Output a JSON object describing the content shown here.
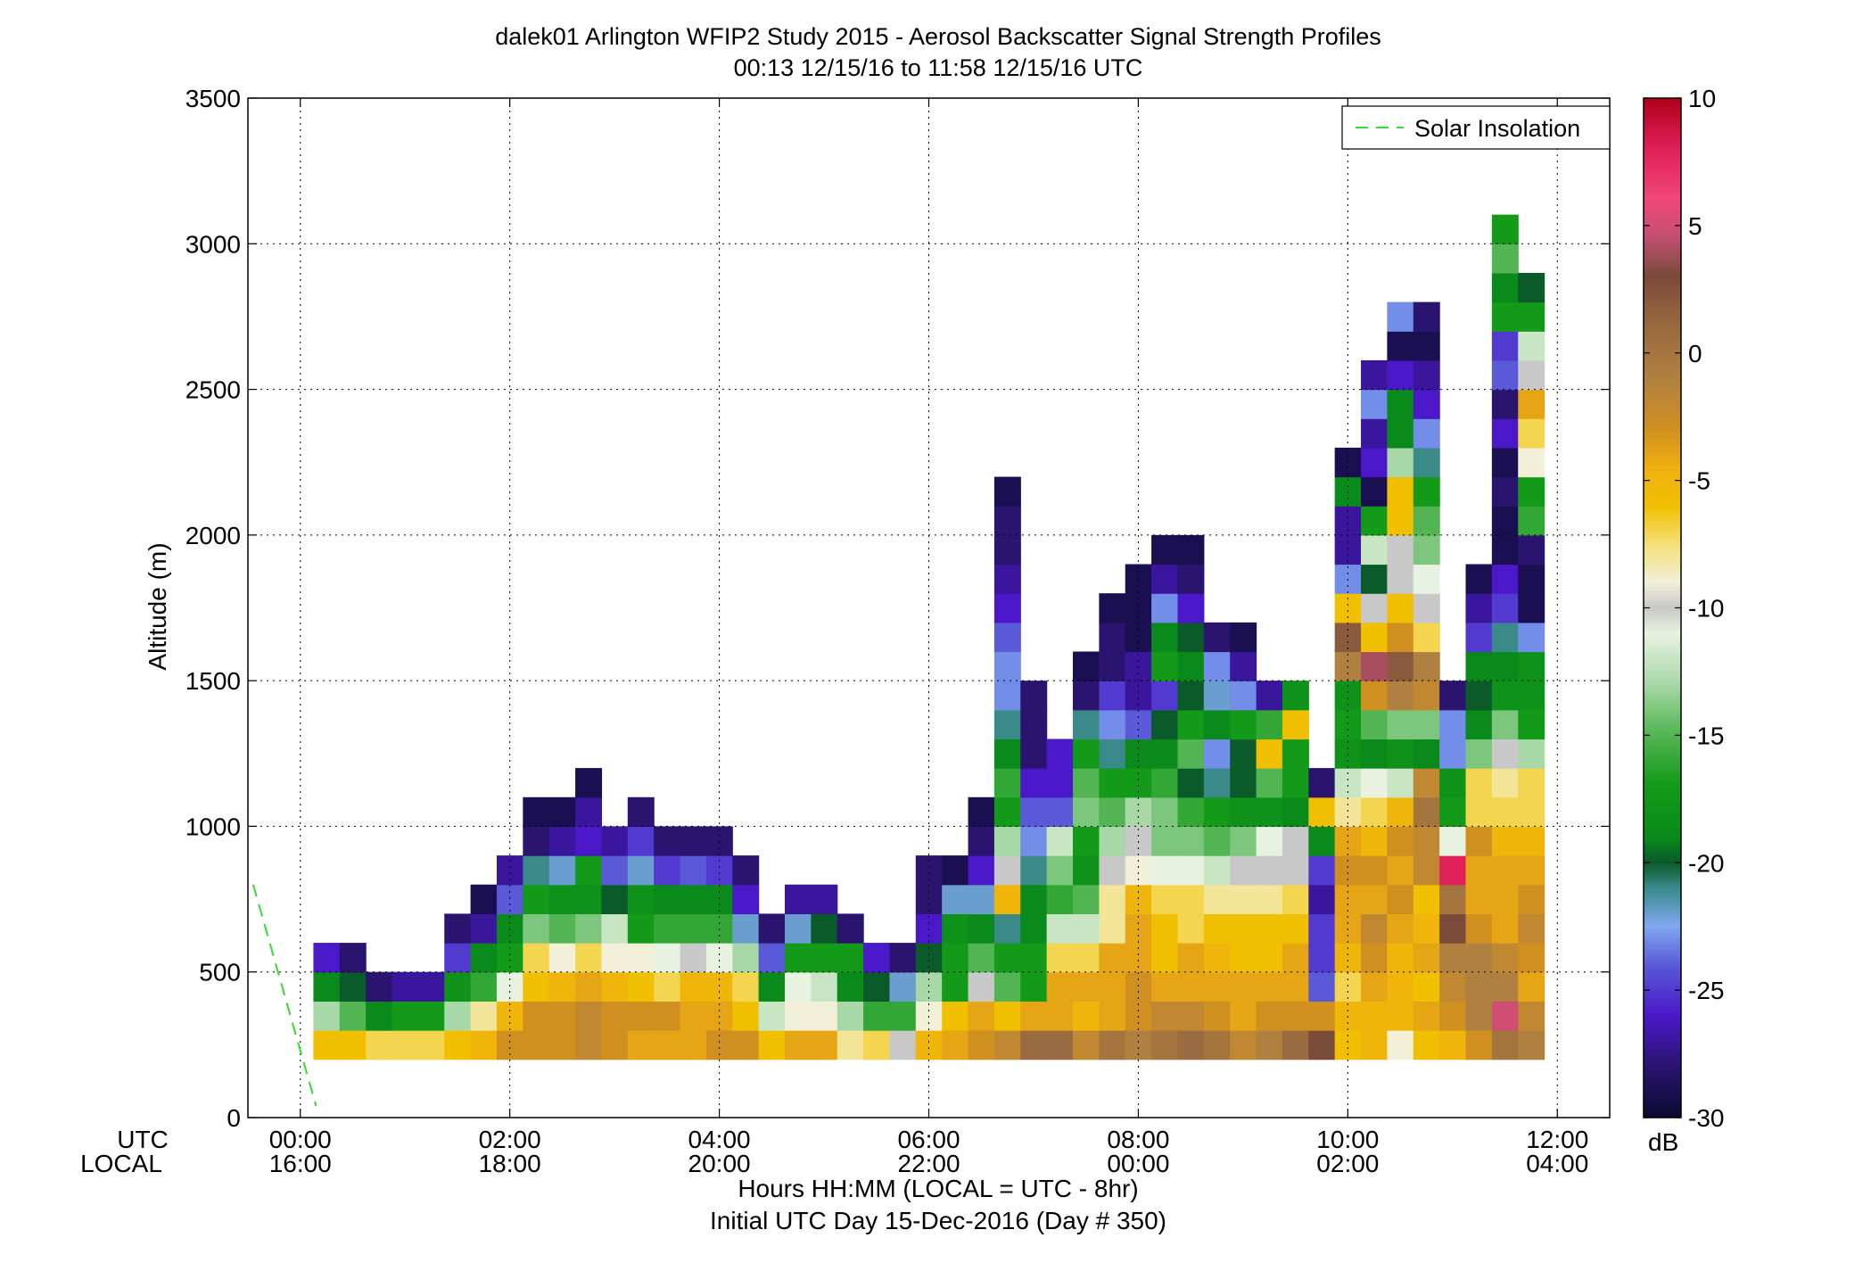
{
  "chart_data": {
    "type": "heatmap",
    "title": "dalek01 Arlington WFIP2 Study 2015 - Aerosol Backscatter Signal Strength Profiles",
    "subtitle": "00:13 12/15/16 to 11:58 12/15/16  UTC",
    "ylabel": "Altitude (m)",
    "xlabel": "Hours HH:MM  (LOCAL = UTC - 8hr)",
    "xlabel2": "Initial UTC Day 15-Dec-2016 (Day # 350)",
    "axis_row_labels": [
      "UTC",
      "LOCAL"
    ],
    "x_ticks_utc": [
      "00:00",
      "02:00",
      "04:00",
      "06:00",
      "08:00",
      "10:00",
      "12:00"
    ],
    "x_ticks_local": [
      "16:00",
      "18:00",
      "20:00",
      "22:00",
      "00:00",
      "02:00",
      "04:00"
    ],
    "x_tick_hours": [
      0,
      2,
      4,
      6,
      8,
      10,
      12
    ],
    "xlim_hours": [
      -0.5,
      12.5
    ],
    "y_ticks": [
      0,
      500,
      1000,
      1500,
      2000,
      2500,
      3000,
      3500
    ],
    "ylim": [
      0,
      3500
    ],
    "grid": true,
    "legend": {
      "entries": [
        "Solar Insolation"
      ],
      "position": "top-right"
    },
    "colorbar": {
      "label": "dB",
      "ticks": [
        10,
        5,
        0,
        -5,
        -10,
        -15,
        -20,
        -25,
        -30
      ],
      "range": [
        -30,
        10
      ]
    },
    "solar_insolation_line": {
      "x_hours": [
        -0.45,
        0.15
      ],
      "y": [
        800,
        40
      ],
      "color": "#33dd33"
    },
    "cell_altitude_bottom_m": 200,
    "cell_altitude_step_m": 100,
    "cell_time_step_hours": 0.25,
    "profiles": [
      {
        "t": 0.25,
        "db": [
          -6,
          -13,
          -19,
          -26
        ]
      },
      {
        "t": 0.5,
        "db": [
          -6,
          -15,
          -20,
          -28
        ]
      },
      {
        "t": 0.75,
        "db": [
          -7,
          -19,
          -28
        ]
      },
      {
        "t": 1.0,
        "db": [
          -7,
          -17,
          -27
        ]
      },
      {
        "t": 1.25,
        "db": [
          -7,
          -17,
          -27
        ]
      },
      {
        "t": 1.5,
        "db": [
          -6,
          -13,
          -18,
          -25,
          -28
        ]
      },
      {
        "t": 1.75,
        "db": [
          -5,
          -8,
          -16,
          -19,
          -27,
          -29
        ]
      },
      {
        "t": 2.0,
        "db": [
          -3,
          -5,
          -11,
          -17,
          -19,
          -24,
          -27
        ]
      },
      {
        "t": 2.25,
        "db": [
          -3,
          -3,
          -6,
          -7,
          -14,
          -17,
          -21,
          -28,
          -29
        ]
      },
      {
        "t": 2.5,
        "db": [
          -3,
          -3,
          -5,
          -9,
          -15,
          -18,
          -22,
          -27,
          -29
        ]
      },
      {
        "t": 2.75,
        "db": [
          -2,
          -2,
          -4,
          -7,
          -14,
          -18,
          -17,
          -26,
          -27,
          -29
        ]
      },
      {
        "t": 3.0,
        "db": [
          -3,
          -3,
          -5,
          -9,
          -12,
          -20,
          -24,
          -27
        ]
      },
      {
        "t": 3.25,
        "db": [
          -4,
          -3,
          -6,
          -9,
          -17,
          -18,
          -22,
          -25,
          -28
        ]
      },
      {
        "t": 3.5,
        "db": [
          -4,
          -3,
          -7,
          -11,
          -16,
          -19,
          -25,
          -28
        ]
      },
      {
        "t": 3.75,
        "db": [
          -4,
          -4,
          -5,
          -10,
          -16,
          -19,
          -24,
          -28
        ]
      },
      {
        "t": 4.0,
        "db": [
          -3,
          -4,
          -5,
          -11,
          -16,
          -19,
          -25,
          -28
        ]
      },
      {
        "t": 4.25,
        "db": [
          -3,
          -6,
          -7,
          -13,
          -22,
          -26,
          -28
        ]
      },
      {
        "t": 4.5,
        "db": [
          -6,
          -12,
          -19,
          -24,
          -28
        ]
      },
      {
        "t": 4.75,
        "db": [
          -4,
          -9,
          -11,
          -17,
          -22,
          -27
        ]
      },
      {
        "t": 5.0,
        "db": [
          -4,
          -9,
          -12,
          -17,
          -20,
          -27
        ]
      },
      {
        "t": 5.25,
        "db": [
          -8,
          -13,
          -19,
          -17,
          -28
        ]
      },
      {
        "t": 5.5,
        "db": [
          -7,
          -16,
          -20,
          -26
        ]
      },
      {
        "t": 5.75,
        "db": [
          -10,
          -16,
          -22,
          -28
        ]
      },
      {
        "t": 6.0,
        "db": [
          -5,
          -9,
          -13,
          -20,
          -26,
          -28,
          -28
        ]
      },
      {
        "t": 6.25,
        "db": [
          -4,
          -6,
          -17,
          -17,
          -18,
          -22,
          -29
        ]
      },
      {
        "t": 6.5,
        "db": [
          -3,
          -4,
          -10,
          -15,
          -19,
          -22,
          -26,
          -28,
          -29
        ]
      },
      {
        "t": 6.75,
        "db": [
          -2,
          -6,
          -15,
          -17,
          -21,
          -5,
          -10,
          -13,
          -17,
          -16,
          -19,
          -21,
          -23,
          -23,
          -24,
          -26,
          -27,
          -28,
          -28,
          -29
        ]
      },
      {
        "t": 7.0,
        "db": [
          1,
          -4,
          -17,
          -17,
          -19,
          -19,
          -21,
          -23,
          -24,
          -26,
          -28,
          -28,
          -28
        ]
      },
      {
        "t": 7.25,
        "db": [
          1,
          -4,
          -4,
          -7,
          -12,
          -16,
          -14,
          -12,
          -24,
          -26,
          -26
        ]
      },
      {
        "t": 7.5,
        "db": [
          -2,
          -5,
          -4,
          -7,
          -12,
          -15,
          -18,
          -17,
          -14,
          -15,
          -17,
          -21,
          -28,
          -29
        ]
      },
      {
        "t": 7.75,
        "db": [
          0,
          -4,
          -4,
          -4,
          -8,
          -8,
          -10,
          -13,
          -15,
          -17,
          -21,
          -23,
          -25,
          -28,
          -28,
          -29
        ]
      },
      {
        "t": 8.0,
        "db": [
          -1,
          -3,
          -3,
          -4,
          -4,
          -5,
          -9,
          -10,
          -13,
          -17,
          -19,
          -24,
          -27,
          -27,
          -29,
          -29,
          -29
        ]
      },
      {
        "t": 8.25,
        "db": [
          0,
          -2,
          -4,
          -6,
          -6,
          -7,
          -11,
          -14,
          -14,
          -16,
          -19,
          -20,
          -25,
          -17,
          -19,
          -23,
          -27,
          -29
        ]
      },
      {
        "t": 8.5,
        "db": [
          1,
          -2,
          -4,
          -4,
          -7,
          -7,
          -11,
          -14,
          -16,
          -20,
          -15,
          -17,
          -20,
          -19,
          -20,
          -26,
          -28,
          -29
        ]
      },
      {
        "t": 8.75,
        "db": [
          0,
          -3,
          -4,
          -5,
          -6,
          -8,
          -12,
          -15,
          -17,
          -21,
          -23,
          -19,
          -22,
          -23,
          -28
        ]
      },
      {
        "t": 9.0,
        "db": [
          -2,
          -4,
          -4,
          -6,
          -6,
          -8,
          -10,
          -14,
          -18,
          -20,
          -20,
          -17,
          -23,
          -27,
          -29
        ]
      },
      {
        "t": 9.25,
        "db": [
          -1,
          -3,
          -4,
          -6,
          -6,
          -8,
          -10,
          -11,
          -18,
          -15,
          -6,
          -16,
          -27
        ]
      },
      {
        "t": 9.5,
        "db": [
          1,
          -3,
          -4,
          -4,
          -6,
          -7,
          -10,
          -10,
          -19,
          -17,
          -17,
          -6,
          -18
        ]
      },
      {
        "t": 9.75,
        "db": [
          3,
          -3,
          -24,
          -25,
          -25,
          -27,
          -25,
          -19,
          -6,
          -28
        ]
      },
      {
        "t": 10.0,
        "db": [
          -6,
          -5,
          -7,
          -5,
          -4,
          -4,
          -3,
          -4,
          -8,
          -12,
          -18,
          -17,
          -18,
          -1,
          2,
          -6,
          -23,
          -27,
          -27,
          -19,
          -29
        ]
      },
      {
        "t": 10.25,
        "db": [
          -5,
          -5,
          -4,
          -3,
          -2,
          -4,
          -3,
          -5,
          -7,
          -11,
          -19,
          -15,
          -3,
          4,
          -6,
          -10,
          -20,
          -12,
          -17,
          -29,
          -26,
          -27,
          -23,
          -27
        ]
      },
      {
        "t": 10.5,
        "db": [
          -9,
          -5,
          -5,
          -5,
          -4,
          -3,
          -4,
          -3,
          -5,
          -12,
          -18,
          -14,
          -1,
          2,
          -3,
          -6,
          -10,
          -10,
          -6,
          -6,
          -13,
          -19,
          -19,
          -26,
          -29,
          -23
        ]
      },
      {
        "t": 10.75,
        "db": [
          -6,
          -4,
          -6,
          -4,
          -5,
          -6,
          -2,
          -2,
          0,
          -2,
          -19,
          -14,
          -2,
          -1,
          -7,
          -10,
          -11,
          -14,
          -15,
          -17,
          -21,
          -23,
          -26,
          -27,
          -29,
          -28
        ]
      },
      {
        "t": 11.0,
        "db": [
          -5,
          -3,
          -2,
          -1,
          3,
          0,
          8,
          -11,
          -17,
          -18,
          -23,
          -23,
          -28
        ]
      },
      {
        "t": 11.25,
        "db": [
          -3,
          -1,
          -1,
          -1,
          -3,
          -4,
          -4,
          -3,
          -7,
          -7,
          -14,
          -19,
          -20,
          -19,
          -25,
          -27,
          -29
        ]
      },
      {
        "t": 11.5,
        "db": [
          0,
          5,
          -1,
          -2,
          -4,
          -4,
          -4,
          -5,
          -7,
          -8,
          -10,
          -14,
          -18,
          -19,
          -21,
          -25,
          -26,
          -29,
          -29,
          -28,
          -29,
          -26,
          -28,
          -24,
          -25,
          -17,
          -19,
          -15,
          -17
        ]
      },
      {
        "t": 11.75,
        "db": [
          -1,
          -2,
          -4,
          -3,
          -2,
          -3,
          -4,
          -5,
          -7,
          -7,
          -13,
          -17,
          -18,
          -18,
          -23,
          -29,
          -29,
          -28,
          -16,
          -17,
          -9,
          -7,
          -4,
          -10,
          -12,
          -17,
          -20
        ]
      }
    ]
  }
}
